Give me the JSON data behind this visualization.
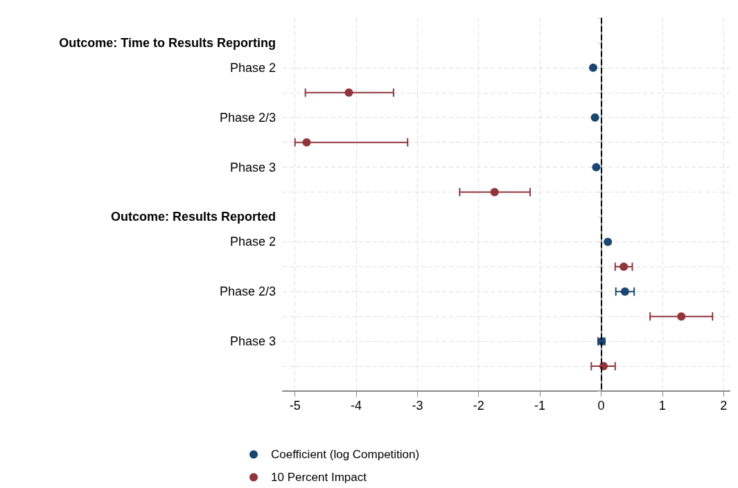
{
  "chart_data": {
    "type": "scatter",
    "orientation": "horizontal",
    "categories": [
      null,
      "Outcome: Time to Results Reporting",
      "Phase 2",
      null,
      "Phase 2/3",
      null,
      "Phase 3",
      null,
      "Outcome: Results Reported",
      "Phase 2",
      null,
      "Phase 2/3",
      null,
      "Phase 3",
      null,
      null
    ],
    "series": [
      {
        "name": "Coefficient (log Competition)",
        "color": "#1a476f",
        "values": [
          null,
          null,
          -0.13,
          null,
          -0.1,
          null,
          -0.08,
          null,
          null,
          0.11,
          null,
          0.39,
          null,
          0.01,
          null,
          null
        ],
        "errors": [
          null,
          null,
          null,
          null,
          null,
          null,
          null,
          null,
          null,
          null,
          null,
          [
            0.24,
            0.54
          ],
          null,
          [
            -0.05,
            0.06
          ],
          null,
          null
        ]
      },
      {
        "name": "10 Percent Impact",
        "color": "#90353b",
        "values": [
          null,
          null,
          null,
          -4.12,
          null,
          -4.81,
          null,
          -1.74,
          null,
          null,
          0.37,
          null,
          1.31,
          null,
          0.04,
          null
        ],
        "errors": [
          null,
          null,
          null,
          [
            -4.83,
            -3.39
          ],
          null,
          [
            -5.0,
            -3.16
          ],
          null,
          [
            -2.31,
            -1.16
          ],
          null,
          null,
          [
            0.23,
            0.51
          ],
          null,
          [
            0.8,
            1.82
          ],
          null,
          [
            -0.16,
            0.23
          ],
          null
        ]
      }
    ],
    "xlim": [
      -5.2,
      2.1
    ],
    "xticks": [
      -5,
      -4,
      -3,
      -2,
      -1,
      0,
      1,
      2
    ],
    "ref_lines": [
      {
        "axis": "x",
        "value": 0,
        "color": "#000000",
        "line_style": "dashed"
      }
    ],
    "grid": true,
    "legend": "bottom",
    "marker": "circle"
  }
}
